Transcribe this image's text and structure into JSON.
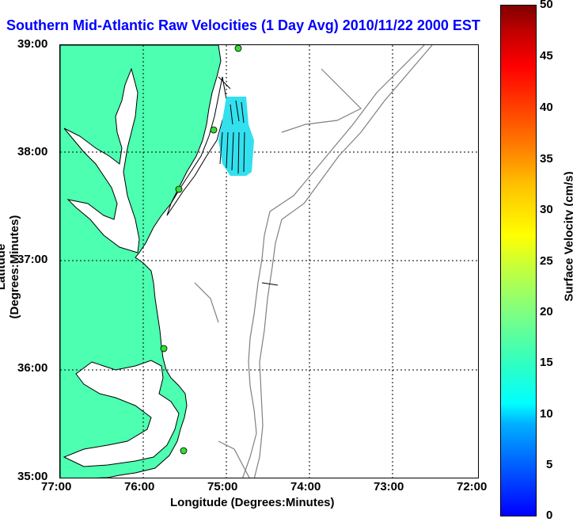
{
  "title": "Southern Mid-Atlantic Raw Velocities (1 Day Avg) 2010/11/22 2000 EST",
  "xlabel": "Longitude (Degrees:Minutes)",
  "ylabel": "Latitude (Degrees:Minutes)",
  "colorbar": {
    "title": "Surface Velocity (cm/s)",
    "ticks": [
      "50",
      "45",
      "40",
      "35",
      "30",
      "25",
      "20",
      "15",
      "10",
      "5",
      "0"
    ]
  },
  "x_ticks": [
    "77:00",
    "76:00",
    "75:00",
    "74:00",
    "73:00",
    "72:00"
  ],
  "y_ticks": [
    "39:00",
    "38:00",
    "37:00",
    "36:00",
    "35:00"
  ],
  "colors": {
    "land": "#4dffb0",
    "title": "#0000ff",
    "coastline": "#000000",
    "bathymetry": "#808080",
    "station": "#33dd33",
    "velocity_patch": "#33e0ee"
  },
  "map_data": {
    "lon_range": [
      -77,
      -72
    ],
    "lat_range": [
      35,
      39
    ],
    "grid": true,
    "stations": 5
  }
}
